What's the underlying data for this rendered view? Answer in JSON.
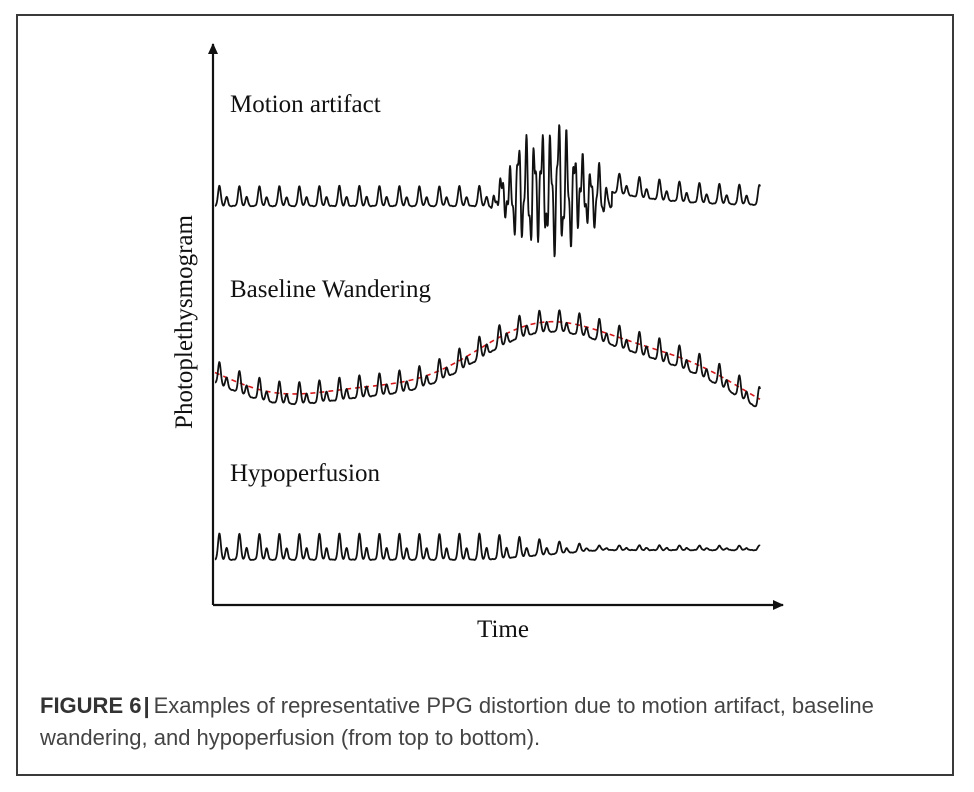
{
  "figure": {
    "y_axis_label": "Photoplethysmogram",
    "x_axis_label": "Time",
    "traces": [
      {
        "label": "Motion artifact"
      },
      {
        "label": "Baseline Wandering"
      },
      {
        "label": "Hypoperfusion"
      }
    ],
    "colors": {
      "signal": "#111111",
      "baseline_trend": "#d7191c"
    }
  },
  "caption": {
    "label": "FIGURE 6",
    "separator": "|",
    "text": "Examples of representative PPG distortion due to motion artifact, baseline wandering, and hypoperfusion (from top to bottom)."
  }
}
